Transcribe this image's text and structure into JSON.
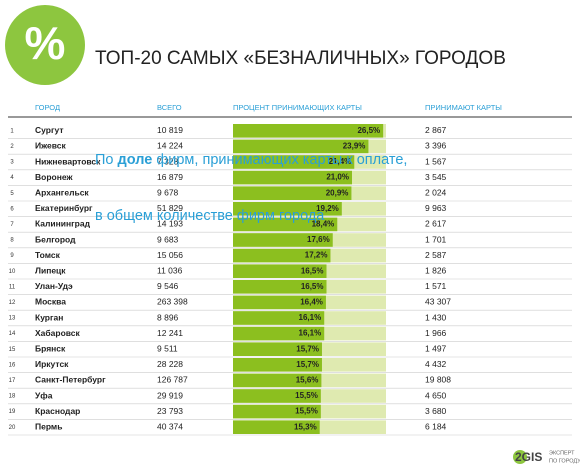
{
  "logo": "%",
  "title": "ТОП-20 САМЫХ «БЕЗНАЛИЧНЫХ» ГОРОДОВ",
  "subtitle": [
    [
      "По ",
      "доле",
      " фирм, принимающих карты к оплате,"
    ],
    [
      "в общем количестве фирм города"
    ]
  ],
  "columns": [
    "ГОРОД",
    "ВСЕГО",
    "ПРОЦЕНТ ПРИНИМАЮЩИХ КАРТЫ",
    "ПРИНИМАЮТ КАРТЫ"
  ],
  "rows": [
    {
      "rank": 1,
      "city": "Сургут",
      "total": "10 819",
      "accepting": "2 867"
    },
    {
      "rank": 2,
      "city": "Ижевск",
      "total": "14 224",
      "accepting": "3 396"
    },
    {
      "rank": 3,
      "city": "Нижневартовск",
      "total": "7 328",
      "accepting": "1 567"
    },
    {
      "rank": 4,
      "city": "Воронеж",
      "total": "16 879",
      "accepting": "3 545"
    },
    {
      "rank": 5,
      "city": "Архангельск",
      "total": "9 678",
      "accepting": "2 024"
    },
    {
      "rank": 6,
      "city": "Екатеринбург",
      "total": "51 829",
      "accepting": "9 963"
    },
    {
      "rank": 7,
      "city": "Калининград",
      "total": "14 193",
      "accepting": "2 617"
    },
    {
      "rank": 8,
      "city": "Белгород",
      "total": "9 683",
      "accepting": "1 701"
    },
    {
      "rank": 9,
      "city": "Томск",
      "total": "15 056",
      "accepting": "2 587"
    },
    {
      "rank": 10,
      "city": "Липецк",
      "total": "11 036",
      "accepting": "1 826"
    },
    {
      "rank": 11,
      "city": "Улан-Удэ",
      "total": "9 546",
      "accepting": "1 571"
    },
    {
      "rank": 12,
      "city": "Москва",
      "total": "263 398",
      "accepting": "43 307"
    },
    {
      "rank": 13,
      "city": "Курган",
      "total": "8 896",
      "accepting": "1 430"
    },
    {
      "rank": 14,
      "city": "Хабаровск",
      "total": "12 241",
      "accepting": "1 966"
    },
    {
      "rank": 15,
      "city": "Брянск",
      "total": "9 511",
      "accepting": "1 497"
    },
    {
      "rank": 16,
      "city": "Иркутск",
      "total": "28 228",
      "accepting": "4 432"
    },
    {
      "rank": 17,
      "city": "Санкт-Петербург",
      "total": "126 787",
      "accepting": "19 808"
    },
    {
      "rank": 18,
      "city": "Уфа",
      "total": "29 919",
      "accepting": "4 650"
    },
    {
      "rank": 19,
      "city": "Краснодар",
      "total": "23 793",
      "accepting": "3 680"
    },
    {
      "rank": 20,
      "city": "Пермь",
      "total": "40 374",
      "accepting": "6 184"
    }
  ],
  "percent": {
    "type": "bar",
    "color": "#8cbf1f",
    "xlim": [
      0,
      27
    ],
    "values": [
      26.5,
      23.9,
      21.4,
      21.0,
      20.9,
      19.2,
      18.4,
      17.6,
      17.2,
      16.5,
      16.5,
      16.4,
      16.1,
      16.1,
      15.7,
      15.7,
      15.6,
      15.5,
      15.5,
      15.3
    ],
    "value_labels": [
      "26,5%",
      "23,9%",
      "21,4%",
      "21,0%",
      "20,9%",
      "19,2%",
      "18,4%",
      "17,6%",
      "17,2%",
      "16,5%",
      "16,5%",
      "16,4%",
      "16,1%",
      "16,1%",
      "15,7%",
      "15,7%",
      "15,6%",
      "15,5%",
      "15,5%",
      "15,3%"
    ]
  },
  "footer": {
    "brand": "2GIS",
    "tagline": [
      "ЭКСПЕРТ",
      "ПО ГОРОДУ"
    ]
  }
}
